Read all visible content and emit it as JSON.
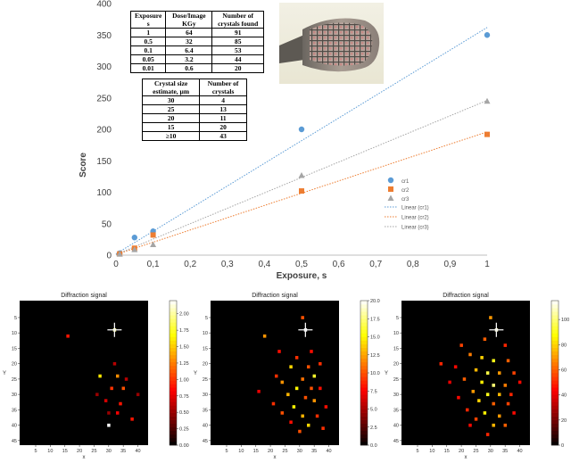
{
  "chart_data": [
    {
      "type": "scatter",
      "title": "",
      "xlabel": "Exposure, s",
      "ylabel": "Score",
      "xlim": [
        0,
        1
      ],
      "ylim": [
        0,
        400
      ],
      "x_ticks": [
        "0",
        "0,1",
        "0,2",
        "0,3",
        "0,4",
        "0,5",
        "0,6",
        "0,7",
        "0,8",
        "0,9",
        "1"
      ],
      "y_ticks": [
        "0",
        "50",
        "100",
        "150",
        "200",
        "250",
        "300",
        "350",
        "400"
      ],
      "grid": false,
      "legend_position": "right-center",
      "series": [
        {
          "name": "cr1",
          "color": "#5b9bd5",
          "marker": "circle",
          "x": [
            0.01,
            0.05,
            0.1,
            0.5,
            1
          ],
          "y": [
            3,
            28,
            38,
            200,
            350
          ]
        },
        {
          "name": "cr2",
          "color": "#ed7d31",
          "marker": "square",
          "x": [
            0.01,
            0.05,
            0.1,
            0.5,
            1
          ],
          "y": [
            2,
            11,
            32,
            102,
            192
          ]
        },
        {
          "name": "cr3",
          "color": "#a5a5a5",
          "marker": "triangle",
          "x": [
            0.01,
            0.05,
            0.1,
            0.5,
            1
          ],
          "y": [
            2,
            9,
            17,
            127,
            245
          ]
        }
      ],
      "trendlines": [
        {
          "name": "Linear (cr1)",
          "color": "#5b9bd5",
          "from": [
            0,
            2
          ],
          "to": [
            1,
            362
          ]
        },
        {
          "name": "Linear (cr2)",
          "color": "#ed7d31",
          "from": [
            0,
            1
          ],
          "to": [
            1,
            196
          ]
        },
        {
          "name": "Linear (cr3)",
          "color": "#a5a5a5",
          "from": [
            0,
            1
          ],
          "to": [
            1,
            246
          ]
        }
      ]
    },
    {
      "type": "heatmap",
      "title": "Diffraction signal",
      "xlabel": "x",
      "ylabel": "Y",
      "x_ticks": [
        5,
        10,
        15,
        20,
        25,
        30,
        35,
        40
      ],
      "y_ticks": [
        5,
        10,
        15,
        20,
        25,
        30,
        35,
        40,
        45
      ],
      "colorbar_ticks": [
        "0.00",
        "0.25",
        "0.50",
        "0.75",
        "1.00",
        "1.25",
        "1.50",
        "1.75",
        "2.00"
      ],
      "colorbar_max": 2.2,
      "marker": [
        32,
        9
      ],
      "cells": [
        [
          16,
          11,
          0.9
        ],
        [
          32,
          9,
          2.0
        ],
        [
          27,
          24,
          1.6
        ],
        [
          33,
          24,
          1.3
        ],
        [
          35,
          28,
          1.1
        ],
        [
          31,
          28,
          1.0
        ],
        [
          34,
          33,
          0.9
        ],
        [
          30,
          40,
          2.2
        ],
        [
          33,
          36,
          0.8
        ],
        [
          29,
          32,
          0.7
        ],
        [
          38,
          38,
          0.9
        ],
        [
          40,
          30,
          0.5
        ],
        [
          26,
          30,
          0.5
        ],
        [
          32,
          20,
          0.6
        ],
        [
          30,
          36,
          0.5
        ],
        [
          36,
          25,
          0.6
        ]
      ]
    },
    {
      "type": "heatmap",
      "title": "Diffraction signal",
      "xlabel": "x",
      "ylabel": "Y",
      "x_ticks": [
        5,
        10,
        15,
        20,
        25,
        30,
        35,
        40
      ],
      "y_ticks": [
        5,
        10,
        15,
        20,
        25,
        30,
        35,
        40,
        45
      ],
      "colorbar_ticks": [
        "0.0",
        "2.5",
        "5.0",
        "7.5",
        "10.0",
        "12.5",
        "15.0",
        "17.5",
        "20.0"
      ],
      "colorbar_max": 20,
      "marker": [
        32,
        9
      ],
      "cells": [
        [
          18,
          11,
          12
        ],
        [
          32,
          9,
          20
        ],
        [
          31,
          5,
          10
        ],
        [
          23,
          16,
          8
        ],
        [
          29,
          18,
          9
        ],
        [
          27,
          21,
          14
        ],
        [
          33,
          21,
          10
        ],
        [
          35,
          24,
          16
        ],
        [
          37,
          20,
          9
        ],
        [
          31,
          25,
          11
        ],
        [
          24,
          26,
          12
        ],
        [
          29,
          28,
          15
        ],
        [
          34,
          28,
          10
        ],
        [
          37,
          28,
          8
        ],
        [
          26,
          30,
          13
        ],
        [
          32,
          31,
          10
        ],
        [
          21,
          33,
          9
        ],
        [
          35,
          32,
          12
        ],
        [
          28,
          34,
          15
        ],
        [
          39,
          34,
          8
        ],
        [
          24,
          36,
          10
        ],
        [
          31,
          37,
          13
        ],
        [
          36,
          37,
          9
        ],
        [
          27,
          39,
          8
        ],
        [
          33,
          40,
          14
        ],
        [
          30,
          42,
          10
        ],
        [
          38,
          41,
          9
        ],
        [
          16,
          29,
          7
        ],
        [
          34,
          16,
          8
        ],
        [
          22,
          24,
          9
        ]
      ]
    },
    {
      "type": "heatmap",
      "title": "Diffraction signal",
      "xlabel": "x",
      "ylabel": "Y",
      "x_ticks": [
        5,
        10,
        15,
        20,
        25,
        30,
        35,
        40
      ],
      "y_ticks": [
        5,
        10,
        15,
        20,
        25,
        30,
        35,
        40,
        45
      ],
      "colorbar_ticks": [
        "0",
        "20",
        "40",
        "60",
        "80",
        "100"
      ],
      "colorbar_max": 115,
      "marker": [
        32,
        9
      ],
      "cells": [
        [
          30,
          5,
          70
        ],
        [
          32,
          9,
          110
        ],
        [
          28,
          12,
          60
        ],
        [
          20,
          14,
          55
        ],
        [
          35,
          14,
          50
        ],
        [
          23,
          17,
          65
        ],
        [
          27,
          18,
          80
        ],
        [
          31,
          19,
          90
        ],
        [
          36,
          19,
          60
        ],
        [
          13,
          20,
          50
        ],
        [
          18,
          21,
          45
        ],
        [
          25,
          22,
          75
        ],
        [
          29,
          23,
          95
        ],
        [
          33,
          23,
          70
        ],
        [
          38,
          23,
          55
        ],
        [
          21,
          25,
          60
        ],
        [
          27,
          26,
          85
        ],
        [
          31,
          27,
          100
        ],
        [
          35,
          27,
          65
        ],
        [
          24,
          29,
          70
        ],
        [
          29,
          30,
          90
        ],
        [
          33,
          30,
          75
        ],
        [
          37,
          30,
          50
        ],
        [
          19,
          31,
          45
        ],
        [
          26,
          32,
          80
        ],
        [
          31,
          33,
          60
        ],
        [
          36,
          33,
          55
        ],
        [
          22,
          35,
          50
        ],
        [
          28,
          36,
          85
        ],
        [
          33,
          37,
          70
        ],
        [
          38,
          36,
          45
        ],
        [
          25,
          38,
          55
        ],
        [
          31,
          40,
          75
        ],
        [
          35,
          40,
          60
        ],
        [
          29,
          43,
          50
        ],
        [
          23,
          40,
          45
        ],
        [
          16,
          26,
          40
        ],
        [
          40,
          26,
          45
        ]
      ]
    }
  ],
  "tables": {
    "exposure": {
      "headers": [
        "Exposure s",
        "Dose/Image KGy",
        "Number of crystals found"
      ],
      "rows": [
        [
          "1",
          "64",
          "91"
        ],
        [
          "0.5",
          "32",
          "85"
        ],
        [
          "0.1",
          "6.4",
          "53"
        ],
        [
          "0.05",
          "3.2",
          "44"
        ],
        [
          "0.01",
          "0.6",
          "20"
        ]
      ]
    },
    "size": {
      "headers": [
        "Crystal size estimate, µm",
        "Number of crystals"
      ],
      "rows": [
        [
          "30",
          "4"
        ],
        [
          "25",
          "13"
        ],
        [
          "20",
          "11"
        ],
        [
          "15",
          "20"
        ],
        [
          "≥10",
          "43"
        ]
      ]
    }
  },
  "photo": {
    "icon": "crystal-mesh-photo"
  }
}
